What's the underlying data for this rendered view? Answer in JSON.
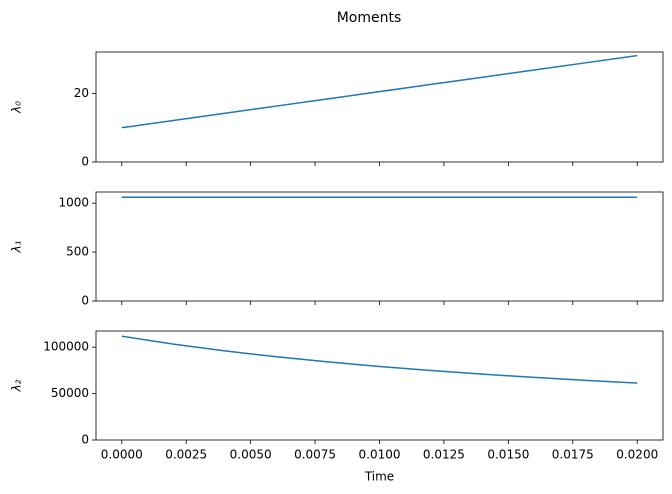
{
  "title": "Moments",
  "chart_data": [
    {
      "type": "line",
      "ylabel": "λ₀",
      "color": "#1f77b4",
      "x": [
        0,
        0.002,
        0.004,
        0.006,
        0.008,
        0.01,
        0.012,
        0.014,
        0.016,
        0.018,
        0.02
      ],
      "values": [
        10,
        12.1,
        14.2,
        16.3,
        18.4,
        20.5,
        22.6,
        24.7,
        26.8,
        28.9,
        31
      ],
      "xlim": [
        -0.001,
        0.021
      ],
      "ylim": [
        0,
        32.05
      ],
      "yticks": [
        0,
        20
      ]
    },
    {
      "type": "line",
      "ylabel": "λ₁",
      "color": "#1f77b4",
      "x": [
        0,
        0.002,
        0.004,
        0.006,
        0.008,
        0.01,
        0.012,
        0.014,
        0.016,
        0.018,
        0.02
      ],
      "values": [
        1061,
        1061,
        1061,
        1061,
        1061,
        1061,
        1061,
        1061,
        1061,
        1061,
        1061
      ],
      "xlim": [
        -0.001,
        0.021
      ],
      "ylim": [
        0,
        1114
      ],
      "yticks": [
        0,
        500,
        1000
      ]
    },
    {
      "type": "line",
      "ylabel": "λ₂",
      "xlabel": "Time",
      "color": "#1f77b4",
      "x": [
        0,
        0.002,
        0.004,
        0.006,
        0.008,
        0.01,
        0.012,
        0.014,
        0.016,
        0.018,
        0.02
      ],
      "values": [
        111800,
        103300,
        95980,
        89650,
        84090,
        79180,
        74820,
        70910,
        67390,
        64200,
        61300
      ],
      "xlim": [
        -0.001,
        0.021
      ],
      "ylim": [
        0,
        117400
      ],
      "yticks": [
        0,
        50000,
        100000
      ],
      "xticks": [
        {
          "value": 0,
          "label": "0.0000"
        },
        {
          "value": 0.0025,
          "label": "0.0025"
        },
        {
          "value": 0.005,
          "label": "0.0050"
        },
        {
          "value": 0.0075,
          "label": "0.0075"
        },
        {
          "value": 0.01,
          "label": "0.0100"
        },
        {
          "value": 0.0125,
          "label": "0.0125"
        },
        {
          "value": 0.015,
          "label": "0.0150"
        },
        {
          "value": 0.0175,
          "label": "0.0175"
        },
        {
          "value": 0.02,
          "label": "0.0200"
        }
      ]
    }
  ]
}
